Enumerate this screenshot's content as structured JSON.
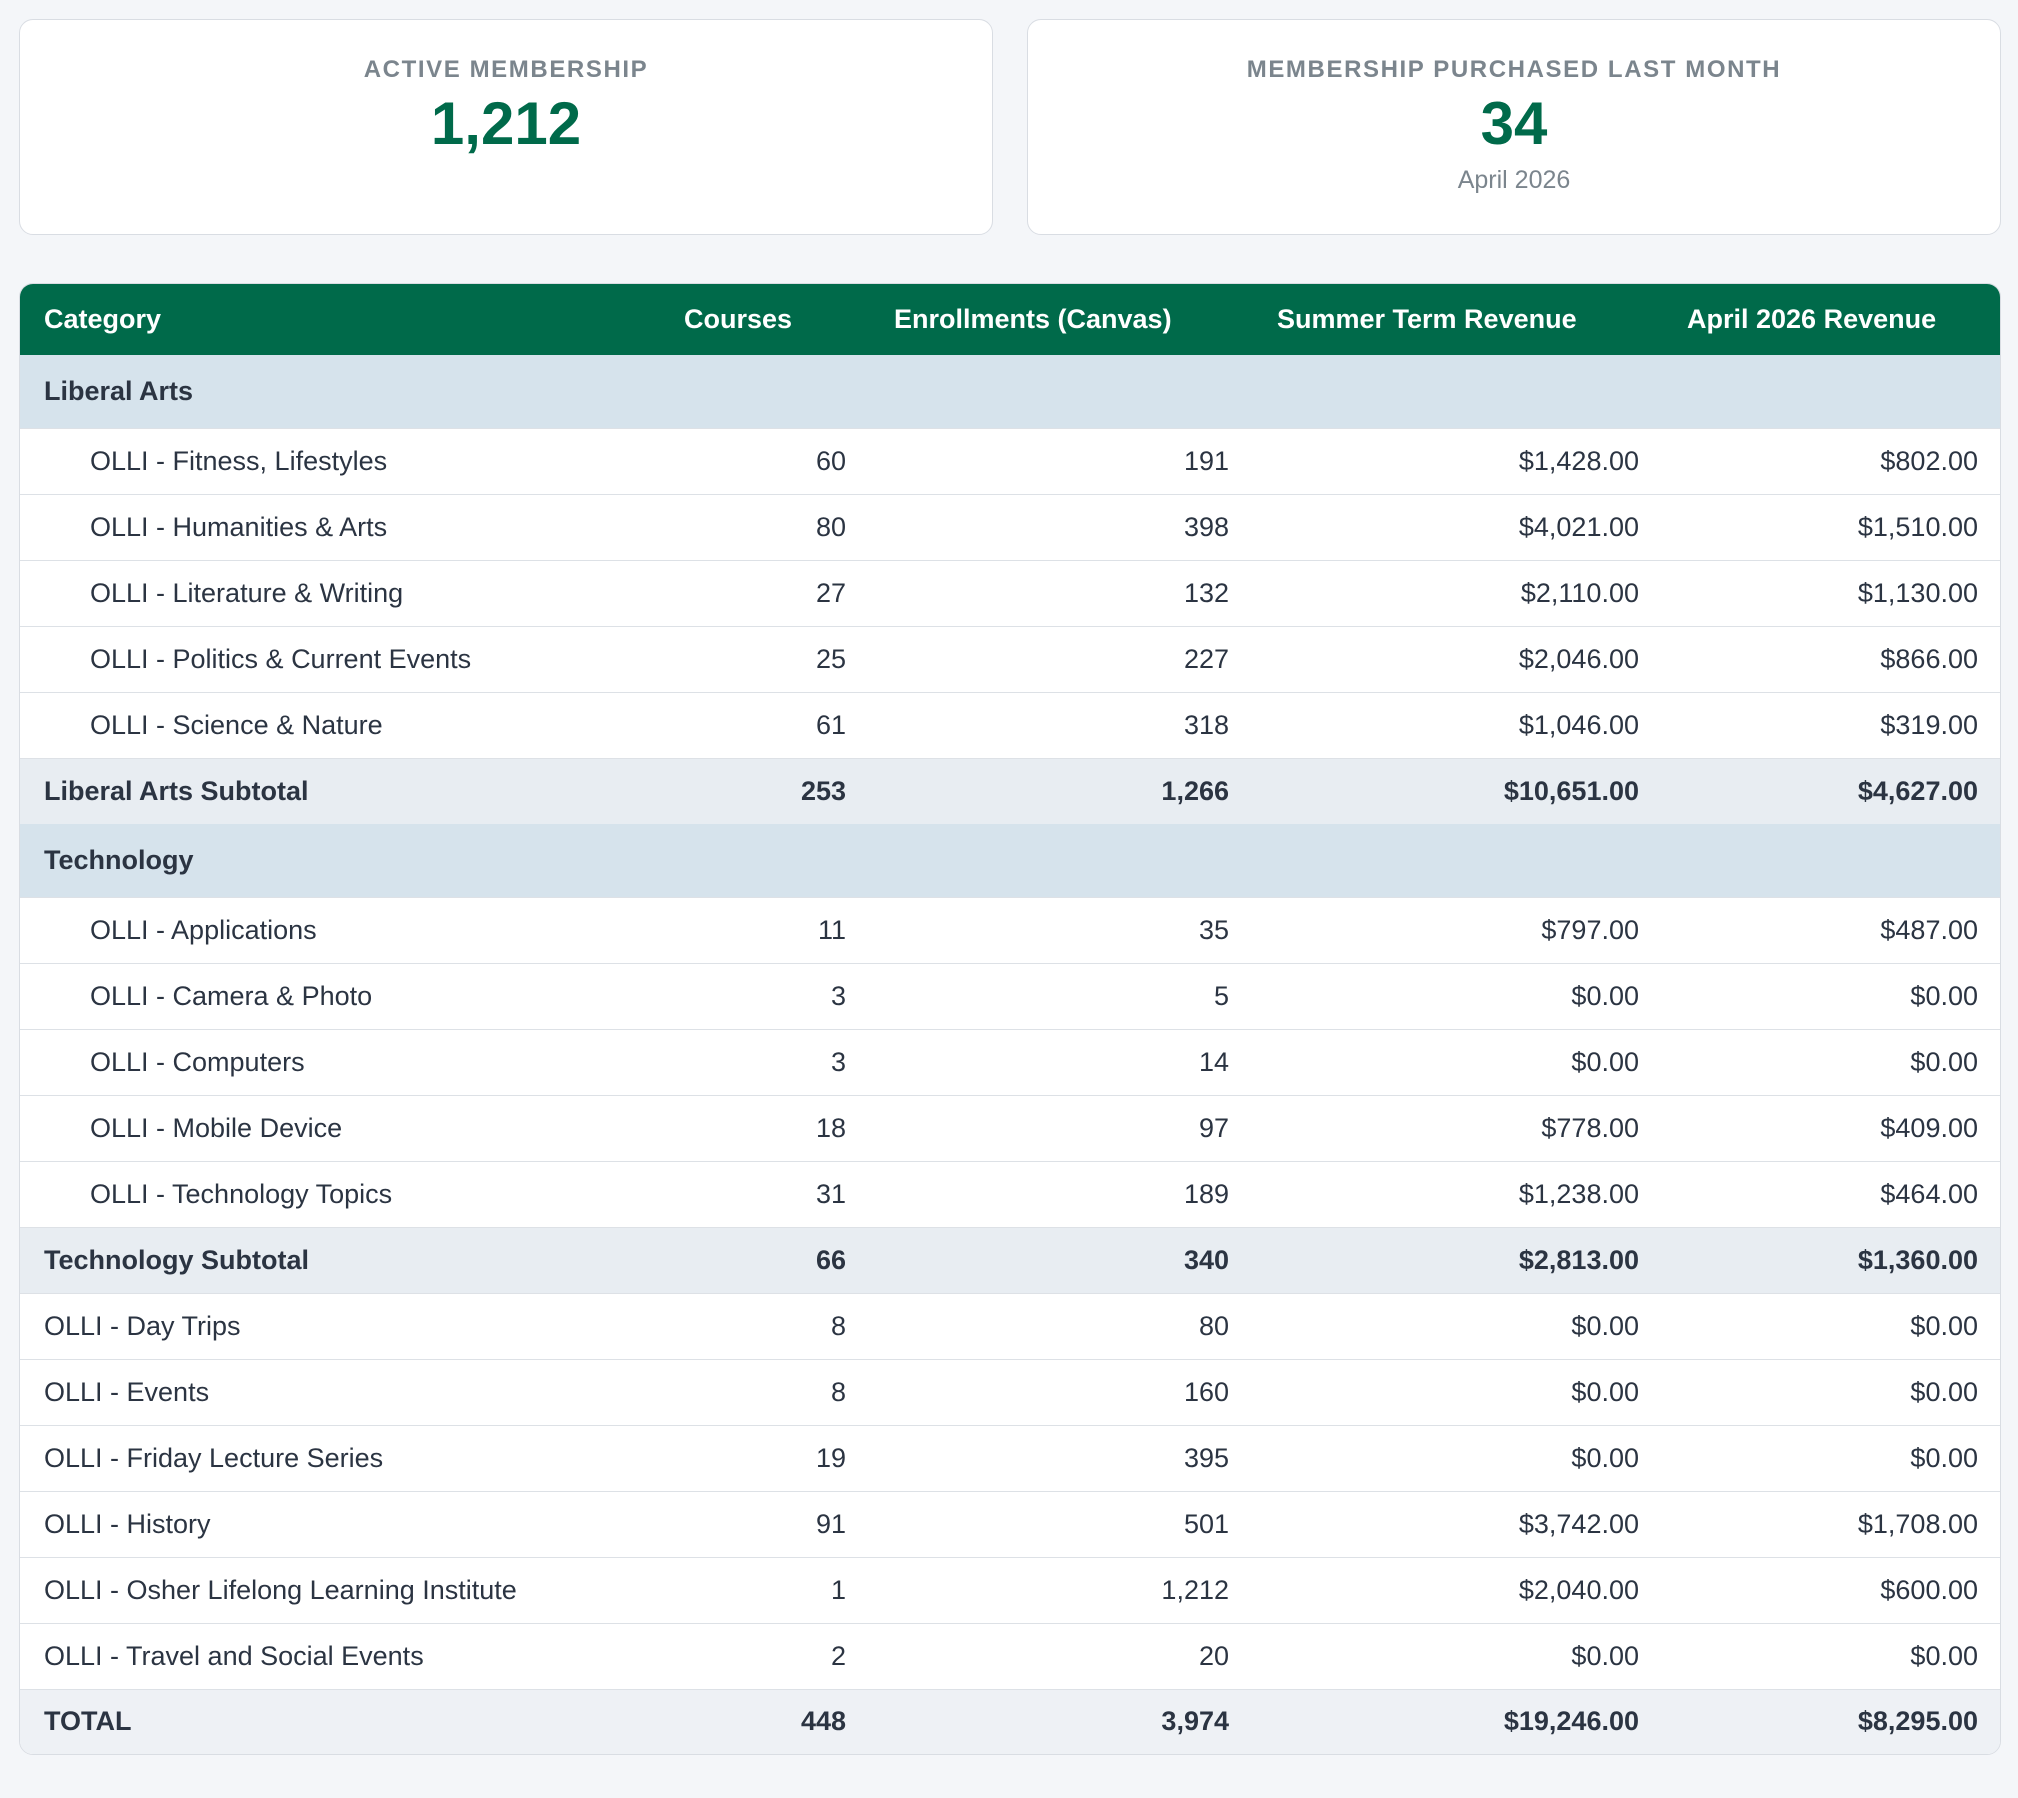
{
  "cards": {
    "active": {
      "label": "ACTIVE MEMBERSHIP",
      "value": "1,212"
    },
    "purchased": {
      "label": "MEMBERSHIP PURCHASED LAST MONTH",
      "value": "34",
      "sub": "April 2026"
    }
  },
  "table": {
    "headers": [
      "Category",
      "Courses",
      "Enrollments (Canvas)",
      "Summer Term Revenue",
      "April 2026 Revenue"
    ],
    "liberal_arts": {
      "title": "Liberal Arts",
      "rows": [
        [
          "OLLI - Fitness, Lifestyles",
          "60",
          "191",
          "$1,428.00",
          "$802.00"
        ],
        [
          "OLLI - Humanities & Arts",
          "80",
          "398",
          "$4,021.00",
          "$1,510.00"
        ],
        [
          "OLLI - Literature & Writing",
          "27",
          "132",
          "$2,110.00",
          "$1,130.00"
        ],
        [
          "OLLI - Politics & Current Events",
          "25",
          "227",
          "$2,046.00",
          "$866.00"
        ],
        [
          "OLLI - Science & Nature",
          "61",
          "318",
          "$1,046.00",
          "$319.00"
        ]
      ],
      "subtotal": [
        "Liberal Arts Subtotal",
        "253",
        "1,266",
        "$10,651.00",
        "$4,627.00"
      ]
    },
    "technology": {
      "title": "Technology",
      "rows": [
        [
          "OLLI - Applications",
          "11",
          "35",
          "$797.00",
          "$487.00"
        ],
        [
          "OLLI - Camera & Photo",
          "3",
          "5",
          "$0.00",
          "$0.00"
        ],
        [
          "OLLI - Computers",
          "3",
          "14",
          "$0.00",
          "$0.00"
        ],
        [
          "OLLI - Mobile Device",
          "18",
          "97",
          "$778.00",
          "$409.00"
        ],
        [
          "OLLI - Technology Topics",
          "31",
          "189",
          "$1,238.00",
          "$464.00"
        ]
      ],
      "subtotal": [
        "Technology Subtotal",
        "66",
        "340",
        "$2,813.00",
        "$1,360.00"
      ]
    },
    "other_rows": [
      [
        "OLLI - Day Trips",
        "8",
        "80",
        "$0.00",
        "$0.00"
      ],
      [
        "OLLI - Events",
        "8",
        "160",
        "$0.00",
        "$0.00"
      ],
      [
        "OLLI - Friday Lecture Series",
        "19",
        "395",
        "$0.00",
        "$0.00"
      ],
      [
        "OLLI - History",
        "91",
        "501",
        "$3,742.00",
        "$1,708.00"
      ],
      [
        "OLLI - Osher Lifelong Learning Institute",
        "1",
        "1,212",
        "$2,040.00",
        "$600.00"
      ],
      [
        "OLLI - Travel and Social Events",
        "2",
        "20",
        "$0.00",
        "$0.00"
      ]
    ],
    "total": [
      "TOTAL",
      "448",
      "3,974",
      "$19,246.00",
      "$8,295.00"
    ]
  },
  "colors": {
    "brand_green": "#006a4a",
    "group_bg": "#d6e3ec",
    "subtotal_bg": "#e8edf2"
  }
}
